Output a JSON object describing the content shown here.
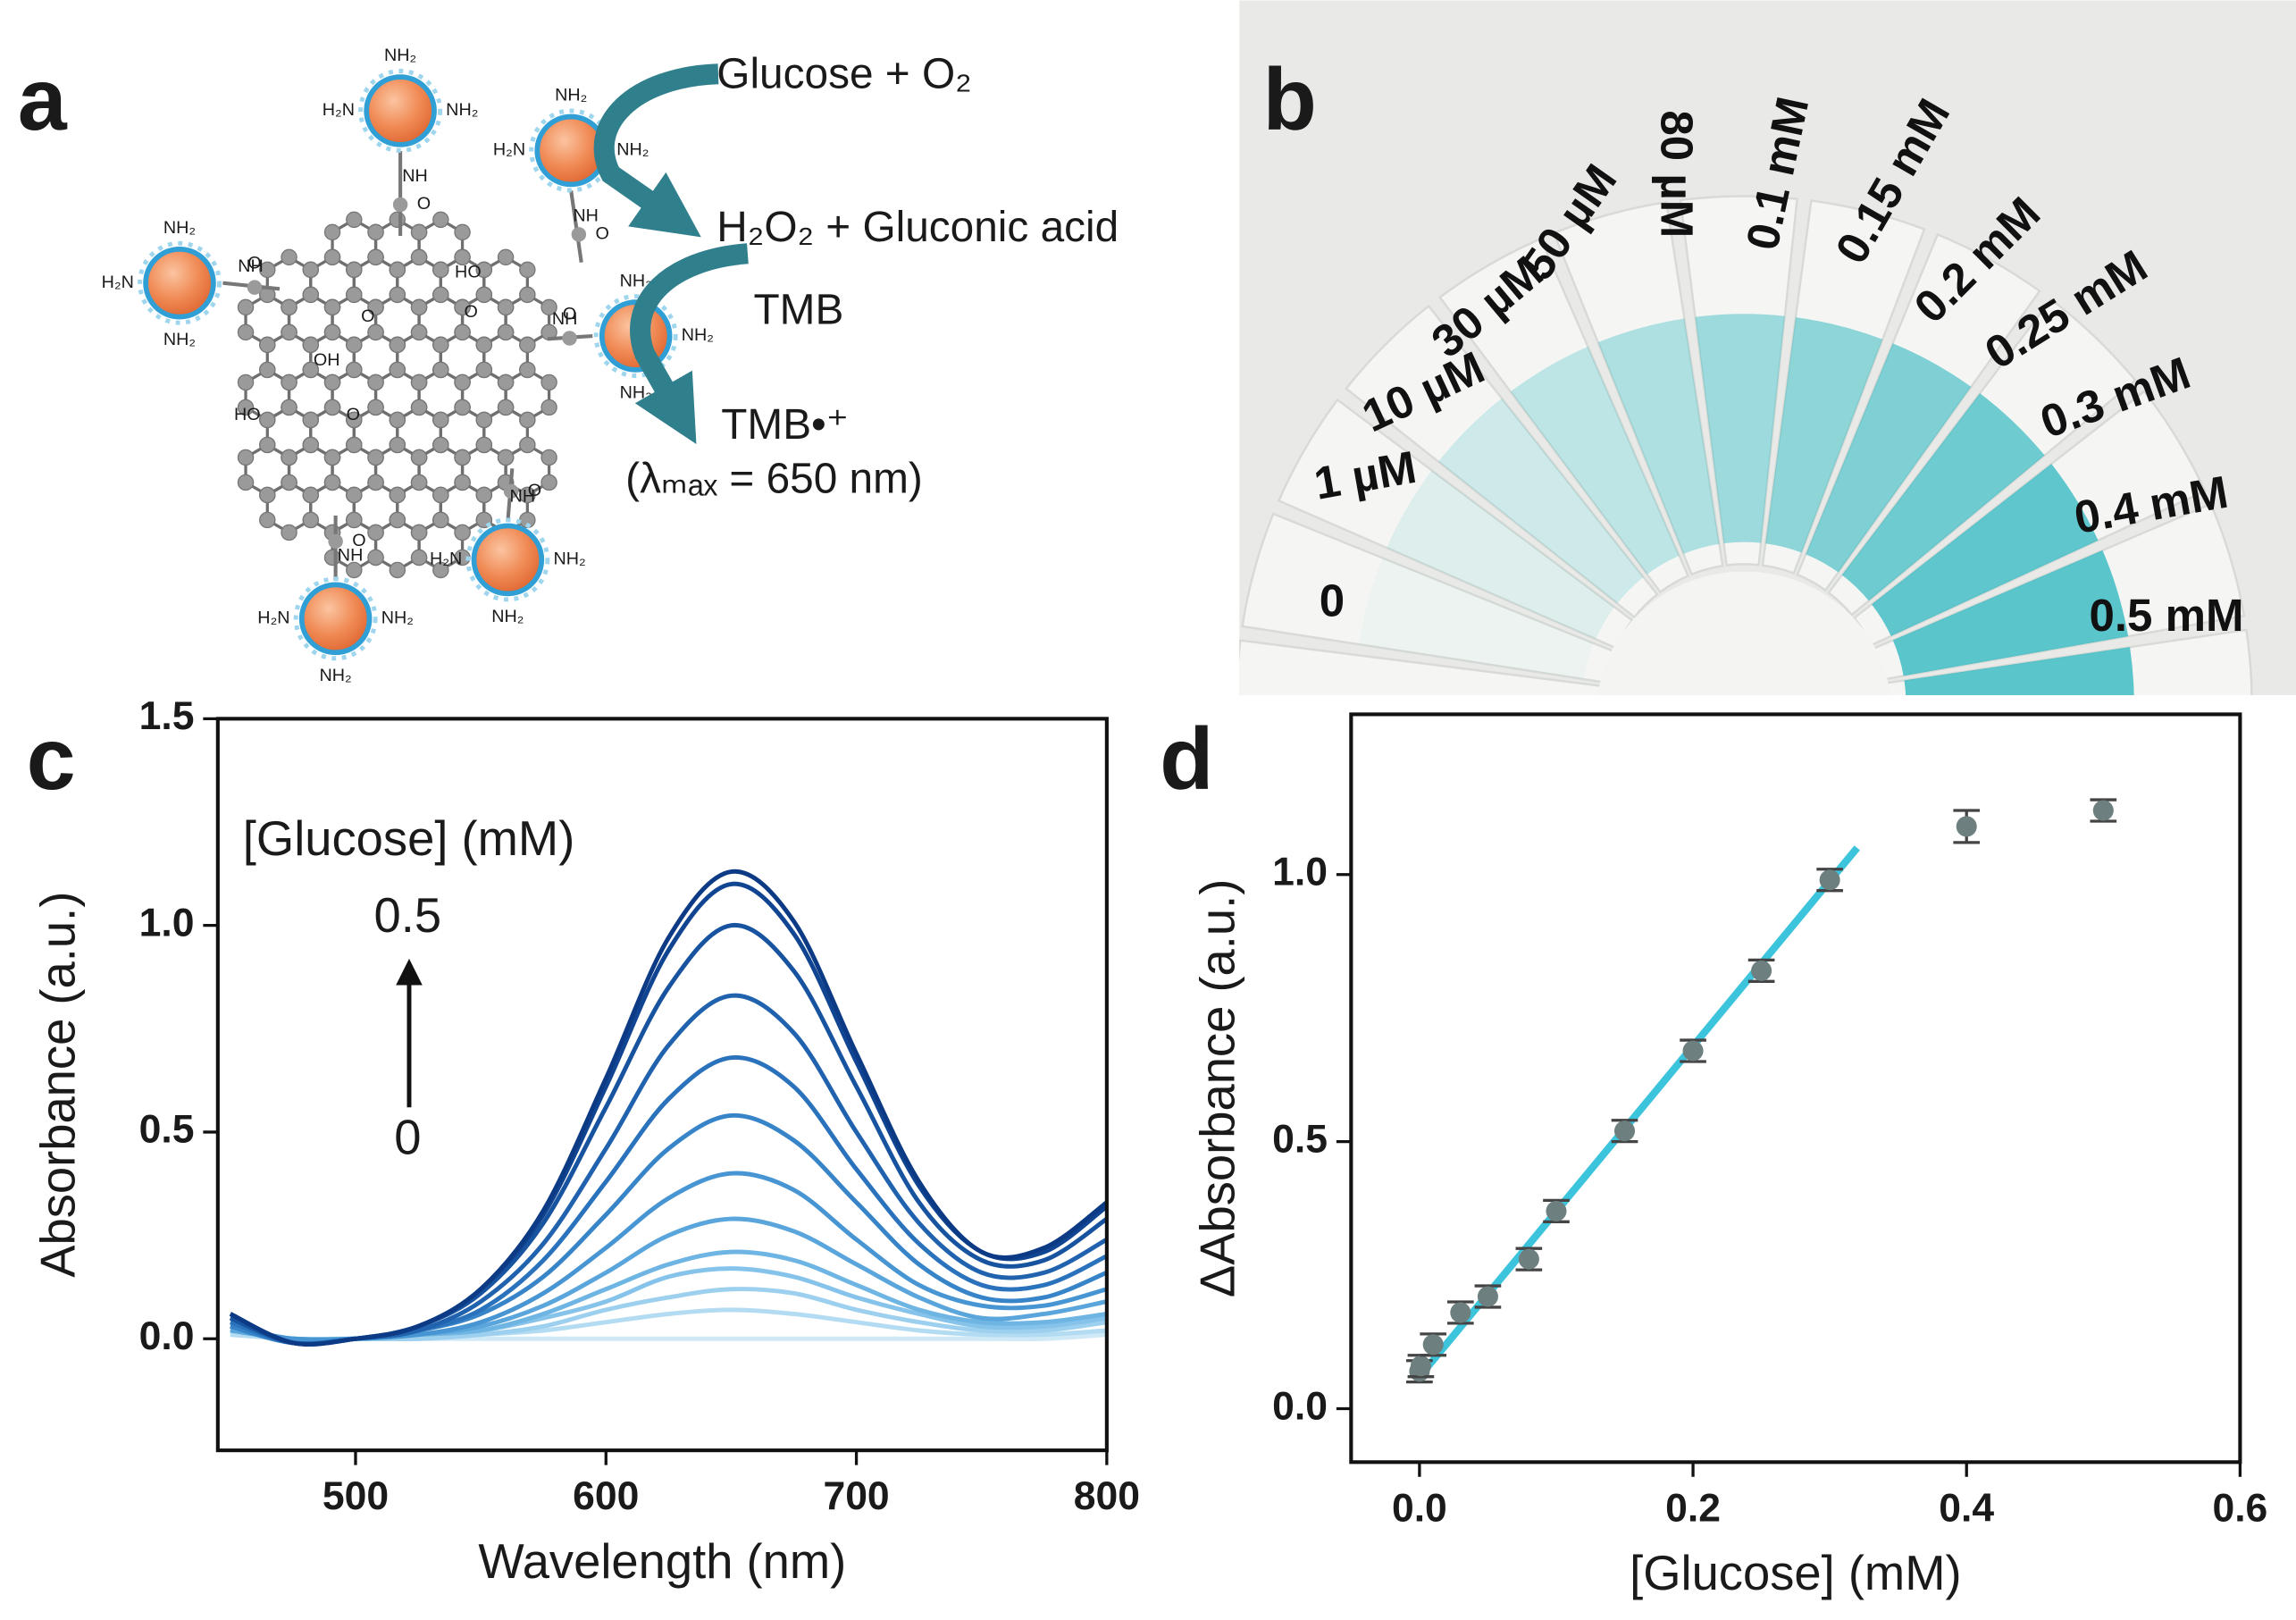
{
  "scheme": {
    "panel": "a",
    "reactions": [
      "Glucose + O₂",
      "H₂O₂ + Gluconic acid",
      "TMB",
      "TMB•⁺",
      "(λₘₐₓ = 650 nm)"
    ],
    "groups": {
      "amine": "NH₂",
      "amine_left": "H₂N",
      "amide": "NH",
      "carbonyl": "O",
      "hydroxyl": "HO",
      "hydroxyl_right": "OH"
    }
  },
  "photo": {
    "panel": "b",
    "labels": [
      "0",
      "1 µM",
      "10 µM",
      "30 µM",
      "50 µM",
      "80 µM",
      "0.1 mM",
      "0.15 mM",
      "0.2 mM",
      "0.25 mM",
      "0.3 mM",
      "0.4 mM",
      "0.5 mM"
    ]
  },
  "chart_data": [
    {
      "type": "line",
      "panel": "c",
      "x_label": "Wavelength (nm)",
      "y_label": "Absorbance (a.u.)",
      "annotations": [
        "[Glucose] (mM)",
        "0.5",
        "0"
      ],
      "xlim": [
        445,
        800
      ],
      "ylim": [
        -0.27,
        1.5
      ],
      "xticks": [
        500,
        600,
        700,
        800
      ],
      "yticks": [
        {
          "value": 0,
          "label": "0.0"
        },
        0.5,
        {
          "value": 1,
          "label": "1.0"
        },
        1.5
      ],
      "x": [
        450,
        475,
        500,
        525,
        550,
        575,
        600,
        625,
        650,
        675,
        700,
        725,
        750,
        775,
        800
      ],
      "series": [
        {
          "color": "#cfe9f7",
          "values": [
            0.01,
            0,
            0,
            0,
            0,
            0,
            0,
            0,
            0,
            0,
            0,
            0,
            0,
            0,
            0.01
          ]
        },
        {
          "color": "#b3dcf3",
          "values": [
            0.01,
            0,
            0,
            0,
            0.01,
            0.02,
            0.04,
            0.06,
            0.07,
            0.06,
            0.04,
            0.02,
            0.01,
            0.01,
            0.02
          ]
        },
        {
          "color": "#9dd0ef",
          "values": [
            0.02,
            0,
            0,
            0,
            0.01,
            0.03,
            0.07,
            0.1,
            0.12,
            0.11,
            0.07,
            0.04,
            0.02,
            0.02,
            0.04
          ]
        },
        {
          "color": "#86c3ea",
          "values": [
            0.02,
            0,
            0,
            0.01,
            0.02,
            0.05,
            0.09,
            0.15,
            0.17,
            0.15,
            0.1,
            0.06,
            0.03,
            0.03,
            0.05
          ]
        },
        {
          "color": "#6fb5e3",
          "values": [
            0.02,
            0,
            0,
            0.01,
            0.02,
            0.06,
            0.12,
            0.18,
            0.21,
            0.19,
            0.13,
            0.07,
            0.04,
            0.04,
            0.06
          ]
        },
        {
          "color": "#5aa5db",
          "values": [
            0.02,
            0,
            0,
            0.01,
            0.03,
            0.08,
            0.16,
            0.25,
            0.29,
            0.26,
            0.18,
            0.1,
            0.05,
            0.06,
            0.09
          ]
        },
        {
          "color": "#4795d2",
          "values": [
            0.03,
            0,
            0,
            0.01,
            0.04,
            0.11,
            0.22,
            0.34,
            0.4,
            0.36,
            0.24,
            0.13,
            0.08,
            0.08,
            0.12
          ]
        },
        {
          "color": "#3784c8",
          "values": [
            0.03,
            -0.01,
            0,
            0.02,
            0.06,
            0.15,
            0.3,
            0.46,
            0.54,
            0.48,
            0.33,
            0.18,
            0.1,
            0.1,
            0.16
          ]
        },
        {
          "color": "#2a72bc",
          "values": [
            0.04,
            -0.01,
            0,
            0.02,
            0.07,
            0.19,
            0.38,
            0.58,
            0.68,
            0.61,
            0.41,
            0.23,
            0.13,
            0.13,
            0.2
          ]
        },
        {
          "color": "#2062ae",
          "values": [
            0.05,
            -0.01,
            0,
            0.02,
            0.09,
            0.23,
            0.46,
            0.71,
            0.83,
            0.74,
            0.5,
            0.28,
            0.16,
            0.16,
            0.24
          ]
        },
        {
          "color": "#17539f",
          "values": [
            0.05,
            -0.01,
            0,
            0.03,
            0.11,
            0.28,
            0.56,
            0.85,
            1.0,
            0.89,
            0.61,
            0.33,
            0.19,
            0.19,
            0.29
          ]
        },
        {
          "color": "#114592",
          "values": [
            0.06,
            -0.01,
            0,
            0.03,
            0.12,
            0.3,
            0.61,
            0.94,
            1.1,
            0.98,
            0.67,
            0.37,
            0.21,
            0.21,
            0.32
          ]
        },
        {
          "color": "#0c3a84",
          "values": [
            0.06,
            -0.01,
            0,
            0.03,
            0.12,
            0.31,
            0.63,
            0.97,
            1.13,
            1.01,
            0.69,
            0.38,
            0.21,
            0.22,
            0.33
          ]
        }
      ]
    },
    {
      "type": "scatter",
      "panel": "d",
      "x_label": "[Glucose] (mM)",
      "y_label": "ΔAbsorbance (a.u.)",
      "xlim": [
        -0.05,
        0.6
      ],
      "ylim": [
        -0.1,
        1.3
      ],
      "xticks": [
        {
          "value": 0,
          "label": "0.0"
        },
        0.2,
        0.4,
        0.6
      ],
      "yticks": [
        {
          "value": 0,
          "label": "0.0"
        },
        0.5,
        {
          "value": 1,
          "label": "1.0"
        }
      ],
      "color": "#6e7f80",
      "x": [
        0,
        0.001,
        0.01,
        0.03,
        0.05,
        0.08,
        0.1,
        0.15,
        0.2,
        0.25,
        0.3,
        0.4,
        0.5
      ],
      "values": [
        0.07,
        0.08,
        0.12,
        0.18,
        0.21,
        0.28,
        0.37,
        0.52,
        0.67,
        0.82,
        0.99,
        1.09,
        1.12
      ],
      "errors": [
        0.02,
        0.02,
        0.02,
        0.02,
        0.02,
        0.02,
        0.02,
        0.02,
        0.02,
        0.02,
        0.02,
        0.03,
        0.02
      ],
      "fit": {
        "color": "#3cc4dc",
        "x": [
          0,
          0.32
        ],
        "values": [
          0.06,
          1.05
        ]
      }
    }
  ]
}
